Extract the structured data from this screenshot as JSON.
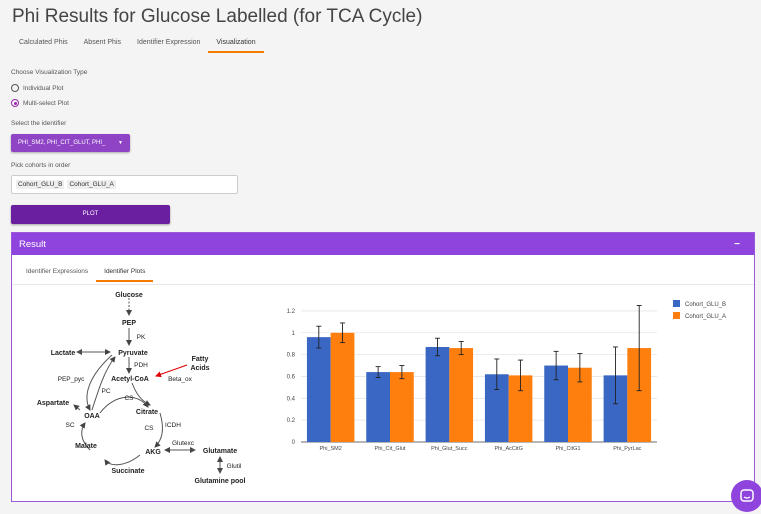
{
  "page": {
    "title": "Phi Results for Glucose Labelled (for TCA Cycle)"
  },
  "tabs": [
    {
      "label": "Calculated Phis",
      "active": false
    },
    {
      "label": "Absent Phis",
      "active": false
    },
    {
      "label": "Identifier Expression",
      "active": false
    },
    {
      "label": "Visualization",
      "active": true
    }
  ],
  "form": {
    "viz_type_label": "Choose Visualization Type",
    "options": [
      {
        "label": "Individual Plot",
        "selected": false
      },
      {
        "label": "Multi-select Plot",
        "selected": true
      }
    ],
    "identifier_label": "Select the identifier",
    "identifier_value": "PHI_SM2, PHI_CIT_GLUT, PHI_",
    "cohorts_label": "Pick cohorts in order",
    "cohorts": [
      "Cohort_GLU_B",
      "Cohort_GLU_A"
    ],
    "plot_label": "PLOT"
  },
  "result": {
    "title": "Result",
    "minimize_icon": "−",
    "tabs": [
      {
        "label": "Identifier Expressions",
        "active": false
      },
      {
        "label": "Identifier Plots",
        "active": true
      }
    ]
  },
  "diagram": {
    "nodes": {
      "glucose": "Glucose",
      "pep": "PEP",
      "pk": "PK",
      "lactate": "Lactate",
      "pyruvate": "Pyruvate",
      "pdh": "PDH",
      "fatty_acids_1": "Fatty",
      "fatty_acids_2": "Acids",
      "pep_pyc": "PEP_pyc",
      "acetylcoa": "Acetyl-CoA",
      "beta_ox": "Beta_ox",
      "pc": "PC",
      "cs1": "CS",
      "aspartate": "Aspartate",
      "oaa": "OAA",
      "citrate": "Citrate",
      "sc": "SC",
      "icdh": "ICDH",
      "cs2": "CS",
      "malate": "Malate",
      "glutexc": "Glutexc",
      "akg": "AKG",
      "glutamate": "Glutamate",
      "succinate": "Succinate",
      "glutil": "Glutil",
      "glutamine_pool": "Glutamine pool"
    }
  },
  "chart_data": {
    "type": "bar",
    "categories": [
      "Phi_SM2",
      "Phi_Cit_Glut",
      "Phi_Glut_Succ",
      "Phi_AcCitG",
      "Phi_CitG1",
      "Phi_PyrLac"
    ],
    "series": [
      {
        "name": "Cohort_GLU_B",
        "color": "#3a66c4",
        "values": [
          0.96,
          0.64,
          0.87,
          0.62,
          0.7,
          0.61
        ],
        "errors": [
          0.1,
          0.05,
          0.08,
          0.14,
          0.13,
          0.26
        ]
      },
      {
        "name": "Cohort_GLU_A",
        "color": "#ff7f0e",
        "values": [
          1.0,
          0.64,
          0.86,
          0.61,
          0.68,
          0.86
        ],
        "errors": [
          0.09,
          0.06,
          0.06,
          0.14,
          0.13,
          0.39
        ]
      }
    ],
    "yticks": [
      "0",
      "0.2",
      "0.4",
      "0.6",
      "0.8",
      "1",
      "1.2"
    ],
    "ylim": [
      0,
      1.3
    ],
    "legend_position": "top-right",
    "grid": true
  }
}
